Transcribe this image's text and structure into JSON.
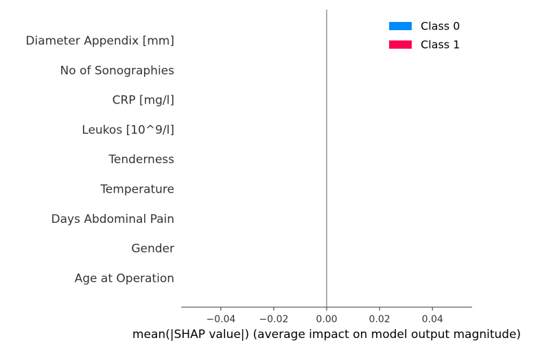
{
  "chart_data": {
    "type": "bar",
    "orientation": "horizontal",
    "categories": [
      "Diameter Appendix [mm]",
      "No of Sonographies",
      "CRP [mg/l]",
      "Leukos [10^9/l]",
      "Tenderness",
      "Temperature",
      "Days Abdominal Pain",
      "Gender",
      "Age at Operation"
    ],
    "series": [
      {
        "name": "Class 0",
        "color": "#008bfb",
        "values": [
          0,
          0,
          0,
          0,
          0,
          0,
          0,
          0,
          0
        ]
      },
      {
        "name": "Class 1",
        "color": "#ff0051",
        "values": [
          0,
          0,
          0,
          0,
          0,
          0,
          0,
          0,
          0
        ]
      }
    ],
    "xlabel": "mean(|SHAP value|) (average impact on model output magnitude)",
    "xlim": [
      -0.055,
      0.055
    ],
    "x_ticks": [
      -0.04,
      -0.02,
      0.0,
      0.02,
      0.04
    ],
    "x_tick_labels": [
      "−0.04",
      "−0.02",
      "0.00",
      "0.02",
      "0.04"
    ],
    "zero_line": true,
    "grid": false,
    "legend_position": "top-right",
    "colors": {
      "text": "#333333",
      "axis": "#333333",
      "zero_line": "#999999"
    }
  }
}
